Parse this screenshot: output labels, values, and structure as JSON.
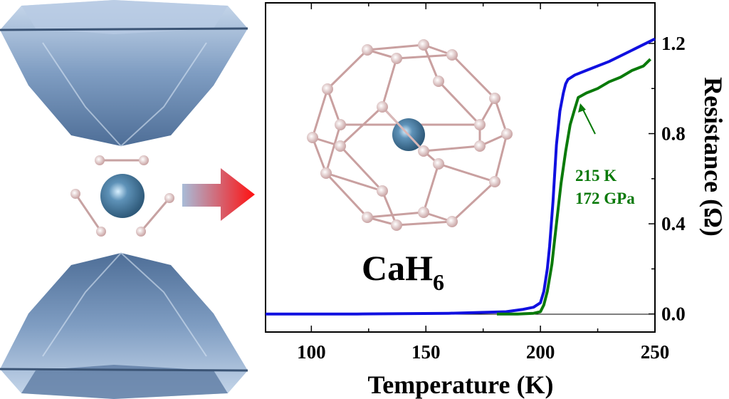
{
  "illustration": {
    "formula": "CaH",
    "formula_subscript": "6"
  },
  "annotation": {
    "line1": "215 K",
    "line2": "172 GPa"
  },
  "chart_data": {
    "type": "line",
    "xlabel": "Temperature (K)",
    "ylabel": "Resistance (Ω)",
    "xlim": [
      80,
      250
    ],
    "ylim": [
      -0.08,
      1.38
    ],
    "xticks": [
      100,
      150,
      200,
      250
    ],
    "xtick_labels": [
      "100",
      "150",
      "200",
      "250"
    ],
    "yticks": [
      0.0,
      0.4,
      0.8,
      1.2
    ],
    "ytick_labels": [
      "0.0",
      "0.4",
      "0.8",
      "1.2"
    ],
    "y_axis_side": "right",
    "grid": false,
    "series": [
      {
        "name": "blue",
        "color": "#1010e0",
        "x": [
          80,
          120,
          160,
          185,
          192,
          197,
          200,
          201.5,
          203,
          204,
          205.5,
          207,
          208.5,
          210,
          211,
          212,
          215,
          220,
          230,
          240,
          250
        ],
        "y": [
          0.0,
          0.0,
          0.003,
          0.01,
          0.02,
          0.03,
          0.05,
          0.1,
          0.2,
          0.3,
          0.5,
          0.75,
          0.9,
          0.98,
          1.02,
          1.04,
          1.06,
          1.08,
          1.12,
          1.17,
          1.22
        ]
      },
      {
        "name": "green",
        "color": "#0a7a0a",
        "x": [
          181,
          190,
          197,
          200,
          201.5,
          203,
          205,
          207,
          209,
          211,
          213,
          215,
          216.5,
          220,
          225,
          230,
          235,
          240,
          245,
          248
        ],
        "y": [
          0.0,
          0.0,
          0.003,
          0.01,
          0.04,
          0.1,
          0.22,
          0.4,
          0.58,
          0.72,
          0.84,
          0.91,
          0.96,
          0.98,
          1.0,
          1.03,
          1.05,
          1.08,
          1.1,
          1.13
        ]
      }
    ],
    "annotations": [
      {
        "text": "215 K / 172 GPa",
        "arrow_to": [
          216.5,
          0.96
        ]
      }
    ]
  }
}
